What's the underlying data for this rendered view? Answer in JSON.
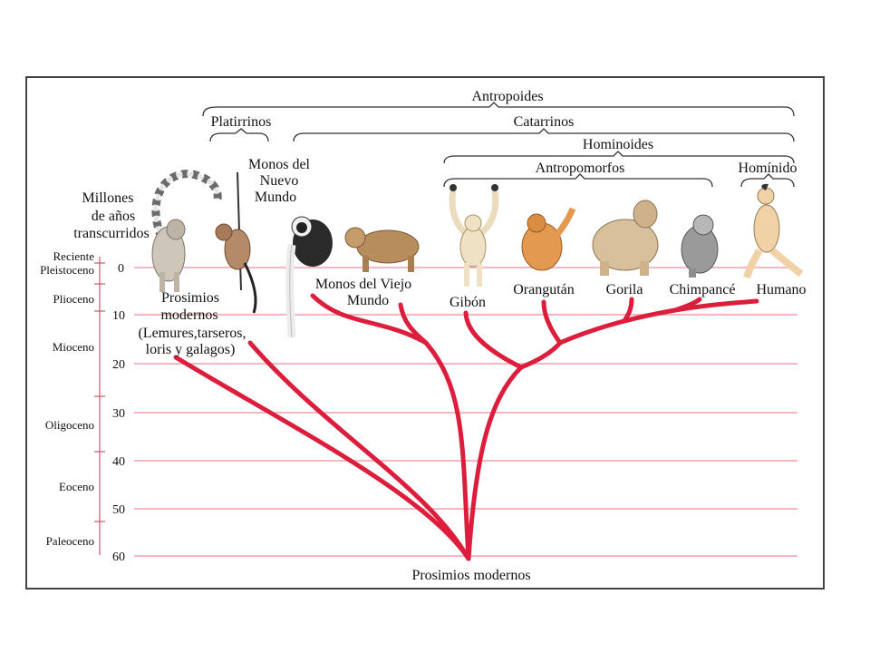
{
  "diagram": {
    "scale_title": [
      "Millones",
      "de años",
      "transcurridos"
    ],
    "scale_ticks": [
      "0",
      "10",
      "20",
      "30",
      "40",
      "50",
      "60"
    ],
    "epochs": [
      "Reciente",
      "Pleistoceno",
      "Plioceno",
      "Mioceno",
      "Oligoceno",
      "Eoceno",
      "Paleoceno"
    ],
    "groups": {
      "antropoides": "Antropoides",
      "platirrinos": "Platirrinos",
      "catarrinos": "Catarrinos",
      "hominoides": "Hominoides",
      "antropomorfos": "Antropomorfos",
      "hominido": "Homínido"
    },
    "taxa": {
      "prosimios": [
        "Prosimios",
        "modernos",
        "(Lemures,tarseros,",
        "loris y galagos)"
      ],
      "nuevo_mundo": [
        "Monos del",
        "Nuevo",
        "Mundo"
      ],
      "viejo_mundo": [
        "Monos del Viejo",
        "Mundo"
      ],
      "gibon": "Gibón",
      "orangutan": "Orangután",
      "gorila": "Gorila",
      "chimpance": "Chimpancé",
      "humano": "Humano"
    },
    "root": "Prosimios modernos",
    "colors": {
      "branches": "#dc1e3c",
      "gridlines": "#f2a0ac",
      "brackets": "#333333"
    }
  }
}
